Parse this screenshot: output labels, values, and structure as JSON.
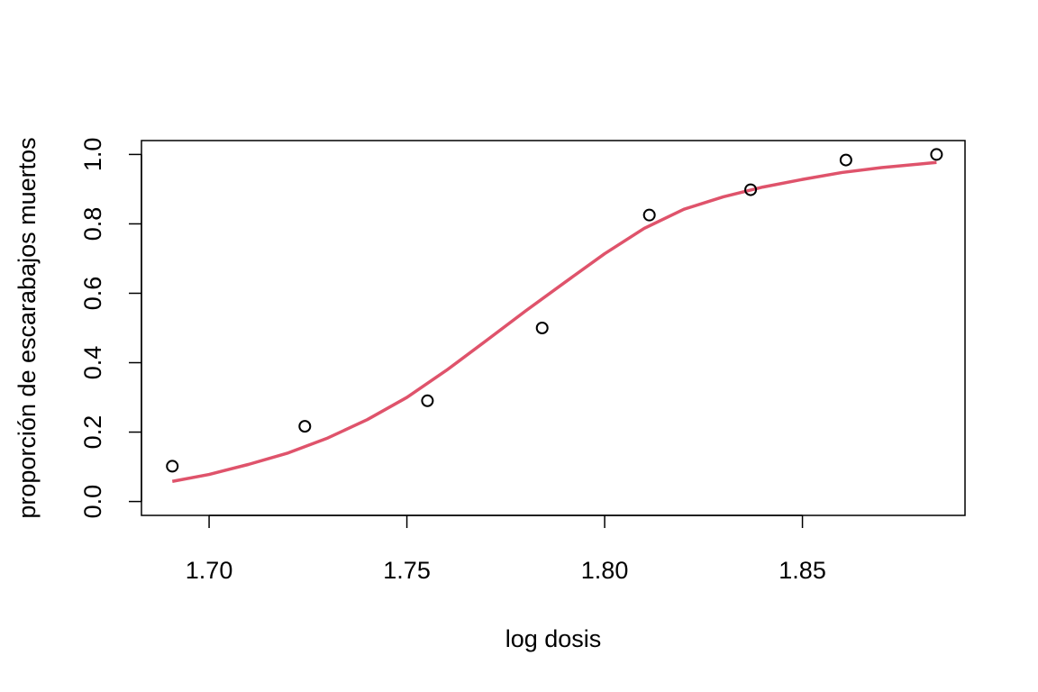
{
  "chart_data": {
    "type": "scatter",
    "title": "",
    "xlabel": "log dosis",
    "ylabel": "proporción de escarabajos muertos",
    "xlim": [
      1.6829,
      1.8911
    ],
    "ylim": [
      -0.04,
      1.04
    ],
    "xticks": [
      "1.70",
      "1.75",
      "1.80",
      "1.85"
    ],
    "yticks": [
      "0.0",
      "0.2",
      "0.4",
      "0.6",
      "0.8",
      "1.0"
    ],
    "grid": false,
    "legend": "none",
    "series": [
      {
        "type": "scatter",
        "marker": "open-circle",
        "color": "#000000",
        "x": [
          1.6907,
          1.7242,
          1.7552,
          1.7842,
          1.8113,
          1.8369,
          1.861,
          1.8839
        ],
        "y": [
          0.1017,
          0.2167,
          0.2903,
          0.5,
          0.8254,
          0.8983,
          0.9839,
          1.0
        ]
      },
      {
        "type": "line",
        "color": "#DF536B",
        "x": [
          1.6907,
          1.7,
          1.71,
          1.72,
          1.73,
          1.74,
          1.75,
          1.76,
          1.77,
          1.78,
          1.79,
          1.8,
          1.81,
          1.82,
          1.83,
          1.84,
          1.85,
          1.86,
          1.87,
          1.8839
        ],
        "y": [
          0.058,
          0.078,
          0.107,
          0.14,
          0.183,
          0.236,
          0.3,
          0.378,
          0.463,
          0.549,
          0.632,
          0.714,
          0.787,
          0.842,
          0.878,
          0.906,
          0.928,
          0.948,
          0.962,
          0.977
        ]
      }
    ]
  }
}
